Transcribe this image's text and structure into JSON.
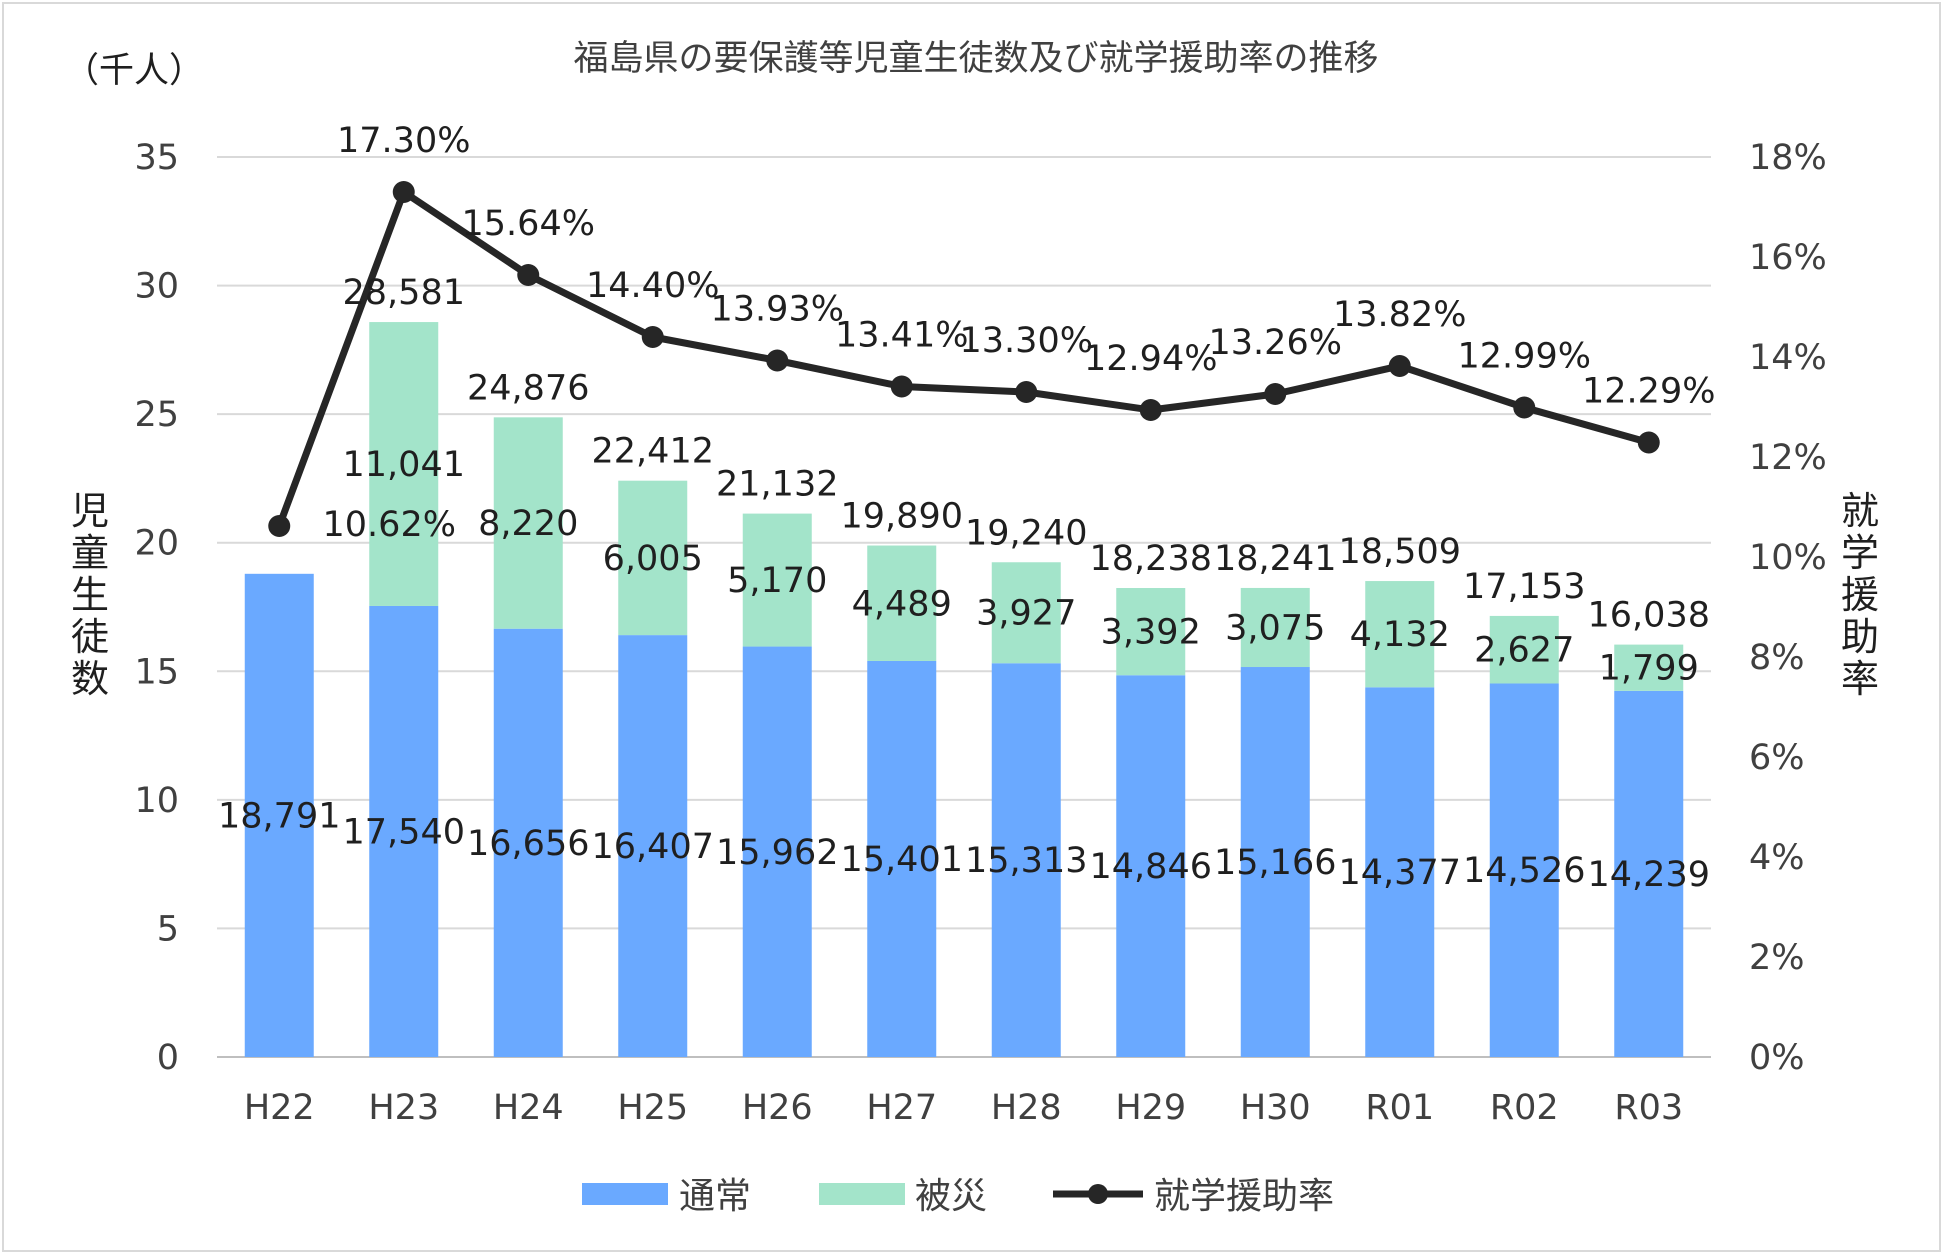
{
  "chart_data": {
    "type": "bar",
    "title": "福島県の要保護等児童生徒数及び就学援助率の推移",
    "unit_label": "（千人）",
    "ylabel": "児童生徒数",
    "y2label": "就学援助率",
    "ylim": [
      0,
      35
    ],
    "y2lim": [
      0,
      18
    ],
    "yticks": [
      "0",
      "5",
      "10",
      "15",
      "20",
      "25",
      "30",
      "35"
    ],
    "y2ticks": [
      "0%",
      "2%",
      "4%",
      "6%",
      "8%",
      "10%",
      "12%",
      "14%",
      "16%",
      "18%"
    ],
    "grid": true,
    "legend_position": "bottom",
    "categories": [
      "H22",
      "H23",
      "H24",
      "H25",
      "H26",
      "H27",
      "H28",
      "H29",
      "H30",
      "R01",
      "R02",
      "R03"
    ],
    "series": [
      {
        "name": "通常",
        "type": "bar",
        "axis": "left",
        "color": "#6aa9ff",
        "values": [
          18.791,
          17.54,
          16.656,
          16.407,
          15.962,
          15.401,
          15.313,
          14.846,
          15.166,
          14.377,
          14.526,
          14.239
        ],
        "labels": [
          "18,791",
          "17,540",
          "16,656",
          "16,407",
          "15,962",
          "15,401",
          "15,313",
          "14,846",
          "15,166",
          "14,377",
          "14,526",
          "14,239"
        ]
      },
      {
        "name": "被災",
        "type": "bar",
        "axis": "left",
        "color": "#a3e4ca",
        "values": [
          0,
          11.041,
          8.22,
          6.005,
          5.17,
          4.489,
          3.927,
          3.392,
          3.075,
          4.132,
          2.627,
          1.799
        ],
        "labels": [
          "",
          "11,041",
          "8,220",
          "6,005",
          "5,170",
          "4,489",
          "3,927",
          "3,392",
          "3,075",
          "4,132",
          "2,627",
          "1,799"
        ]
      },
      {
        "name": "就学援助率",
        "type": "line",
        "axis": "right",
        "color": "#262626",
        "values": [
          10.62,
          17.3,
          15.64,
          14.4,
          13.93,
          13.41,
          13.3,
          12.94,
          13.26,
          13.82,
          12.99,
          12.29
        ],
        "labels": [
          "10.62%",
          "17.30%",
          "15.64%",
          "14.40%",
          "13.93%",
          "13.41%",
          "13.30%",
          "12.94%",
          "13.26%",
          "13.82%",
          "12.99%",
          "12.29%"
        ]
      }
    ],
    "totals": [
      "",
      "28,581",
      "24,876",
      "22,412",
      "21,132",
      "19,890",
      "19,240",
      "18,238",
      "18,241",
      "18,509",
      "17,153",
      "16,038"
    ]
  },
  "colors": {
    "text": "#404040",
    "label": "#1f1f1f",
    "grid": "#d9d9d9",
    "border": "#d9d9d9"
  }
}
